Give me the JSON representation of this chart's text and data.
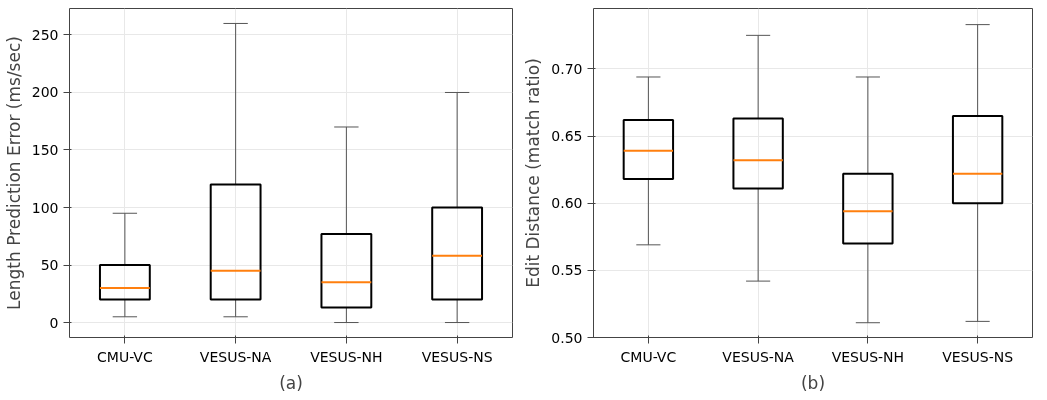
{
  "chart_data": [
    {
      "type": "box",
      "xlabel": "(a)",
      "ylabel": "Length Prediction Error (ms/sec)",
      "categories": [
        "CMU-VC",
        "VESUS-NA",
        "VESUS-NH",
        "VESUS-NS"
      ],
      "boxes": [
        {
          "low": 5,
          "q1": 20,
          "median": 30,
          "q3": 50,
          "high": 95
        },
        {
          "low": 5,
          "q1": 20,
          "median": 45,
          "q3": 120,
          "high": 260
        },
        {
          "low": 0,
          "q1": 13,
          "median": 35,
          "q3": 77,
          "high": 170
        },
        {
          "low": 0,
          "q1": 20,
          "median": 58,
          "q3": 100,
          "high": 200
        }
      ],
      "ylim": [
        -13,
        273
      ],
      "yticks": [
        0,
        50,
        100,
        150,
        200,
        250
      ],
      "grid": true
    },
    {
      "type": "box",
      "xlabel": "(b)",
      "ylabel": "Edit Distance (match ratio)",
      "categories": [
        "CMU-VC",
        "VESUS-NA",
        "VESUS-NH",
        "VESUS-NS"
      ],
      "boxes": [
        {
          "low": 0.569,
          "q1": 0.618,
          "median": 0.639,
          "q3": 0.662,
          "high": 0.694
        },
        {
          "low": 0.542,
          "q1": 0.611,
          "median": 0.632,
          "q3": 0.663,
          "high": 0.725
        },
        {
          "low": 0.511,
          "q1": 0.57,
          "median": 0.594,
          "q3": 0.622,
          "high": 0.694
        },
        {
          "low": 0.512,
          "q1": 0.6,
          "median": 0.622,
          "q3": 0.665,
          "high": 0.733
        }
      ],
      "ylim": [
        0.5,
        0.745
      ],
      "yticks": [
        {
          "value": 0.5,
          "label": "0.50"
        },
        {
          "value": 0.55,
          "label": "0.55"
        },
        {
          "value": 0.6,
          "label": "0.60"
        },
        {
          "value": 0.65,
          "label": "0.65"
        },
        {
          "value": 0.7,
          "label": "0.70"
        }
      ],
      "grid": true
    }
  ]
}
